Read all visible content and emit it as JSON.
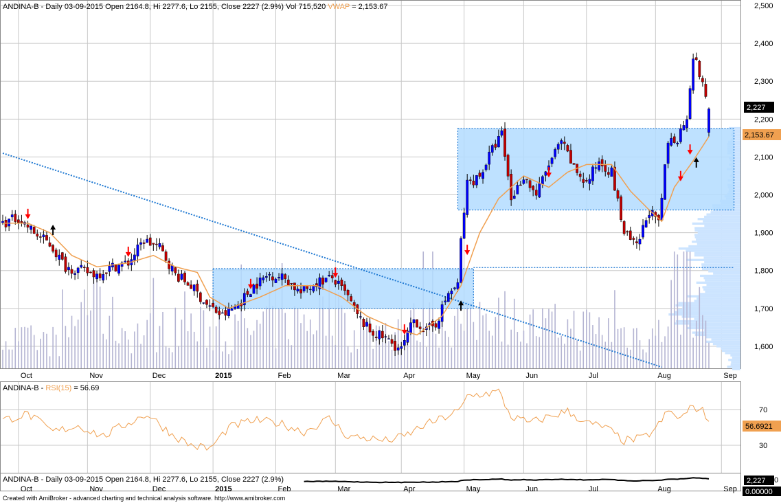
{
  "header": {
    "symbol_line": "ANDINA-B - Daily 03-09-2015 Open 2164.8, Hi 2277.6, Lo 2155, Close 2227 (2.9%) Vol 715,520",
    "vwap_label": "VWAP",
    "vwap_value": "= 2,153.67"
  },
  "rsi_header": {
    "symbol": "ANDINA-B -",
    "rsi_label": "RSI(15)",
    "rsi_value": "= 56.69"
  },
  "bottom_header": {
    "line": "ANDINA-B - Daily 03-09-2015 Open 2164.8, Hi 2277.6, Lo 2155, Close 2227 (2.9%)"
  },
  "footer": {
    "credit": "Created with AmiBroker - advanced charting and technical analysis software. http://www.amibroker.com"
  },
  "badges": {
    "close": "2,227",
    "vwap": "2,153.67",
    "rsi": "56.6921",
    "bottom_close": "2,227",
    "bottom_zero": "0.00000"
  },
  "colors": {
    "up_candle": "#0000ff",
    "down_candle": "#c00000",
    "vwap_line": "#f0a050",
    "rsi_line": "#f0a050",
    "zone_fill": "#b3dcff",
    "zone_border": "#1e78d2",
    "trendline": "#1e78d2",
    "volume": "#b4b4d2",
    "profile": "#cce4ff",
    "buy_arrow": "#000000",
    "sell_arrow": "#ff0000"
  },
  "chart_data": {
    "type": "candlestick",
    "price_axis": {
      "min": 1540,
      "max": 2500,
      "ticks": [
        2500,
        2400,
        2300,
        2200,
        2100,
        2000,
        1900,
        1800,
        1700,
        1600
      ],
      "tick_labels": [
        "2,500",
        "2,400",
        "2,300",
        "2,200",
        "2,100",
        "2,000",
        "1,900",
        "1,800",
        "1,700",
        "1,600"
      ]
    },
    "rsi_axis": {
      "min": 0,
      "max": 100,
      "ticks": [
        70,
        30
      ],
      "tick_labels": [
        "70",
        "30"
      ]
    },
    "bottom_axis": {
      "tick_labels": [
        "0"
      ]
    },
    "months": [
      {
        "label": "Oct",
        "bar": 5
      },
      {
        "label": "Nov",
        "bar": 27
      },
      {
        "label": "Dec",
        "bar": 47
      },
      {
        "label": "2015",
        "bar": 67
      },
      {
        "label": "Feb",
        "bar": 87
      },
      {
        "label": "Mar",
        "bar": 106
      },
      {
        "label": "Apr",
        "bar": 127
      },
      {
        "label": "May",
        "bar": 147
      },
      {
        "label": "Jun",
        "bar": 166
      },
      {
        "label": "Jul",
        "bar": 186
      },
      {
        "label": "Aug",
        "bar": 208
      },
      {
        "label": "Sep",
        "bar": 229
      }
    ],
    "close_anchors": [
      [
        0,
        1925
      ],
      [
        5,
        1940
      ],
      [
        10,
        1900
      ],
      [
        15,
        1870
      ],
      [
        20,
        1810
      ],
      [
        25,
        1800
      ],
      [
        30,
        1790
      ],
      [
        35,
        1810
      ],
      [
        40,
        1820
      ],
      [
        45,
        1880
      ],
      [
        50,
        1860
      ],
      [
        55,
        1790
      ],
      [
        60,
        1760
      ],
      [
        65,
        1710
      ],
      [
        70,
        1680
      ],
      [
        75,
        1710
      ],
      [
        80,
        1760
      ],
      [
        85,
        1790
      ],
      [
        90,
        1780
      ],
      [
        95,
        1740
      ],
      [
        100,
        1770
      ],
      [
        105,
        1780
      ],
      [
        110,
        1730
      ],
      [
        113,
        1680
      ],
      [
        117,
        1640
      ],
      [
        122,
        1620
      ],
      [
        127,
        1590
      ],
      [
        131,
        1670
      ],
      [
        135,
        1640
      ],
      [
        138,
        1660
      ],
      [
        142,
        1740
      ],
      [
        145,
        1760
      ],
      [
        146,
        1880
      ],
      [
        148,
        2030
      ],
      [
        152,
        2050
      ],
      [
        156,
        2120
      ],
      [
        159,
        2160
      ],
      [
        162,
        1990
      ],
      [
        166,
        2050
      ],
      [
        170,
        2000
      ],
      [
        174,
        2080
      ],
      [
        178,
        2140
      ],
      [
        182,
        2070
      ],
      [
        186,
        2030
      ],
      [
        190,
        2090
      ],
      [
        194,
        2060
      ],
      [
        198,
        1900
      ],
      [
        202,
        1860
      ],
      [
        206,
        1960
      ],
      [
        209,
        1920
      ],
      [
        212,
        2140
      ],
      [
        215,
        2150
      ],
      [
        218,
        2210
      ],
      [
        220,
        2370
      ],
      [
        222,
        2320
      ],
      [
        225,
        2227
      ]
    ],
    "vwap_anchors": [
      [
        0,
        1925
      ],
      [
        8,
        1925
      ],
      [
        15,
        1900
      ],
      [
        22,
        1840
      ],
      [
        30,
        1810
      ],
      [
        40,
        1820
      ],
      [
        48,
        1840
      ],
      [
        55,
        1810
      ],
      [
        62,
        1795
      ],
      [
        66,
        1730
      ],
      [
        72,
        1700
      ],
      [
        82,
        1730
      ],
      [
        90,
        1760
      ],
      [
        100,
        1760
      ],
      [
        108,
        1730
      ],
      [
        116,
        1680
      ],
      [
        124,
        1650
      ],
      [
        132,
        1630
      ],
      [
        140,
        1680
      ],
      [
        146,
        1760
      ],
      [
        152,
        1900
      ],
      [
        158,
        1990
      ],
      [
        166,
        2050
      ],
      [
        174,
        2020
      ],
      [
        180,
        2060
      ],
      [
        186,
        2080
      ],
      [
        194,
        2080
      ],
      [
        200,
        2010
      ],
      [
        206,
        1960
      ],
      [
        210,
        1930
      ],
      [
        214,
        2020
      ],
      [
        220,
        2090
      ],
      [
        225,
        2153.67
      ]
    ],
    "rsi_anchors": [
      [
        0,
        58
      ],
      [
        8,
        65
      ],
      [
        16,
        45
      ],
      [
        24,
        52
      ],
      [
        32,
        40
      ],
      [
        40,
        55
      ],
      [
        46,
        65
      ],
      [
        54,
        42
      ],
      [
        60,
        30
      ],
      [
        66,
        26
      ],
      [
        72,
        50
      ],
      [
        80,
        58
      ],
      [
        88,
        55
      ],
      [
        96,
        45
      ],
      [
        104,
        60
      ],
      [
        110,
        40
      ],
      [
        116,
        38
      ],
      [
        122,
        35
      ],
      [
        128,
        40
      ],
      [
        134,
        52
      ],
      [
        140,
        60
      ],
      [
        146,
        70
      ],
      [
        148,
        85
      ],
      [
        152,
        87
      ],
      [
        158,
        90
      ],
      [
        162,
        62
      ],
      [
        168,
        55
      ],
      [
        174,
        62
      ],
      [
        180,
        68
      ],
      [
        186,
        55
      ],
      [
        192,
        50
      ],
      [
        198,
        35
      ],
      [
        204,
        38
      ],
      [
        208,
        48
      ],
      [
        212,
        68
      ],
      [
        216,
        60
      ],
      [
        220,
        74
      ],
      [
        223,
        68
      ],
      [
        225,
        56.69
      ]
    ],
    "volume_anchors": [
      [
        0,
        4
      ],
      [
        20,
        4
      ],
      [
        26,
        10
      ],
      [
        40,
        5
      ],
      [
        60,
        6
      ],
      [
        70,
        5
      ],
      [
        90,
        6
      ],
      [
        104,
        9
      ],
      [
        112,
        5
      ],
      [
        140,
        7
      ],
      [
        150,
        6
      ],
      [
        155,
        10
      ],
      [
        165,
        6
      ],
      [
        175,
        6
      ],
      [
        186,
        6
      ],
      [
        200,
        5
      ],
      [
        210,
        5
      ],
      [
        214,
        14
      ],
      [
        216,
        9
      ],
      [
        218,
        19
      ],
      [
        220,
        10
      ],
      [
        222,
        8
      ],
      [
        225,
        6
      ]
    ],
    "zones": [
      {
        "from_bar": 67,
        "to_bar": 150,
        "low": 1700,
        "high": 1805
      },
      {
        "from_bar": 145,
        "to_bar": 233,
        "low": 1960,
        "high": 2175
      }
    ],
    "support_line": {
      "from_bar": 150,
      "to_bar": 233,
      "price": 1808
    },
    "trendline": {
      "start_bar": 0,
      "start_price": 2110,
      "end_bar": 210,
      "end_price": 1545
    },
    "buy_arrows": [
      [
        16,
        1912
      ],
      [
        146,
        1712
      ],
      [
        221,
        2090
      ]
    ],
    "sell_arrows": [
      [
        8,
        1945
      ],
      [
        40,
        1845
      ],
      [
        79,
        1760
      ],
      [
        106,
        1790
      ],
      [
        128,
        1640
      ],
      [
        148,
        1850
      ],
      [
        174,
        2055
      ],
      [
        216,
        2045
      ],
      [
        219,
        2115
      ]
    ],
    "profile": [
      [
        2020,
        20
      ],
      [
        1990,
        30
      ],
      [
        1960,
        50
      ],
      [
        1930,
        70
      ],
      [
        1900,
        85
      ],
      [
        1870,
        95
      ],
      [
        1840,
        90
      ],
      [
        1810,
        70
      ],
      [
        1780,
        60
      ],
      [
        1750,
        75
      ],
      [
        1720,
        90
      ],
      [
        1690,
        110
      ],
      [
        1660,
        100
      ],
      [
        1630,
        75
      ],
      [
        1600,
        40
      ],
      [
        1570,
        15
      ]
    ],
    "bars_total": 226
  }
}
